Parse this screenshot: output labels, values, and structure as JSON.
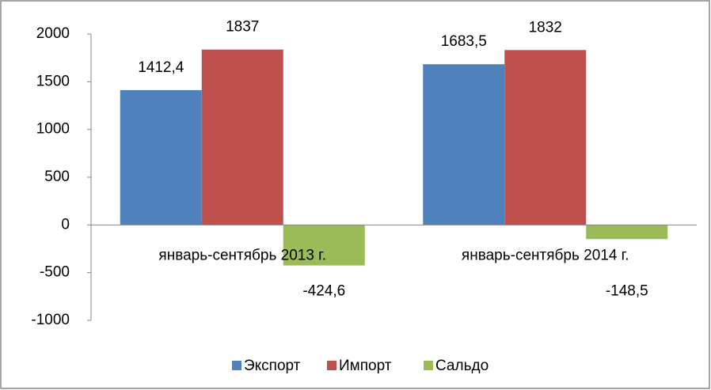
{
  "chart_data": {
    "type": "bar",
    "categories": [
      "январь-сентябрь 2013 г.",
      "январь-сентябрь 2014 г."
    ],
    "series": [
      {
        "name": "Экспорт",
        "color": "#4f81bd",
        "values": [
          1412.4,
          1683.5
        ],
        "value_labels": [
          "1412,4",
          "1683,5"
        ]
      },
      {
        "name": "Импорт",
        "color": "#c0504d",
        "values": [
          1837,
          1832
        ],
        "value_labels": [
          "1837",
          "1832"
        ]
      },
      {
        "name": "Сальдо",
        "color": "#9bbb59",
        "values": [
          -424.6,
          -148.5
        ],
        "value_labels": [
          "-424,6",
          "-148,5"
        ]
      }
    ],
    "ylim": [
      -1000,
      2000
    ],
    "yticks": [
      -1000,
      -500,
      0,
      500,
      1000,
      1500,
      2000
    ],
    "grid": false,
    "legend": "bottom"
  }
}
